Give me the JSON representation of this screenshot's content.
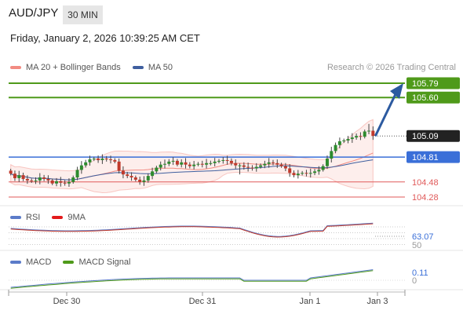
{
  "header": {
    "pair": "AUD/JPY",
    "timeframe": "30 MIN",
    "datetime": "Friday, January 2, 2026 10:39:25 AM CET",
    "credit": "Research © 2026 Trading Central"
  },
  "legend": {
    "main": [
      {
        "label": "MA 20 + Bollinger Bands",
        "color": "#f28b82"
      },
      {
        "label": "MA 50",
        "color": "#3f5f9f"
      }
    ],
    "rsi": [
      {
        "label": "RSI",
        "color": "#5b7bc9"
      },
      {
        "label": "9MA",
        "color": "#e31a1c"
      }
    ],
    "macd": [
      {
        "label": "MACD",
        "color": "#5b7bc9"
      },
      {
        "label": "MACD Signal",
        "color": "#4f9a1a"
      }
    ]
  },
  "colors": {
    "resistance": "#4f9a1a",
    "pivot": "#3a6fd8",
    "support": "#e05a5a",
    "current": "#222222",
    "arrow": "#2c5aa0",
    "bull": "#2e8b2e",
    "bear": "#c0392b"
  },
  "chart_data": [
    {
      "type": "candlestick",
      "title": "AUD/JPY",
      "ylim": [
        104.2,
        105.84
      ],
      "x_ticks": [
        "Dec 30",
        "Dec 31",
        "Jan 1",
        "Jan 3"
      ],
      "levels": [
        {
          "value": 105.79,
          "label": "105.79",
          "kind": "resistance"
        },
        {
          "value": 105.6,
          "label": "105.60",
          "kind": "resistance"
        },
        {
          "value": 105.09,
          "label": "105.09",
          "kind": "current"
        },
        {
          "value": 104.81,
          "label": "104.81",
          "kind": "pivot"
        },
        {
          "value": 104.48,
          "label": "104.48",
          "kind": "support"
        },
        {
          "value": 104.28,
          "label": "104.28",
          "kind": "support"
        }
      ],
      "closes": [
        104.59,
        104.53,
        104.57,
        104.52,
        104.5,
        104.49,
        104.5,
        104.54,
        104.52,
        104.5,
        104.46,
        104.49,
        104.47,
        104.46,
        104.48,
        104.54,
        104.64,
        104.7,
        104.74,
        104.78,
        104.79,
        104.77,
        104.79,
        104.78,
        104.77,
        104.75,
        104.63,
        104.58,
        104.56,
        104.54,
        104.51,
        104.48,
        104.5,
        104.56,
        104.62,
        104.67,
        104.71,
        104.72,
        104.75,
        104.76,
        104.71,
        104.74,
        104.71,
        104.69,
        104.71,
        104.72,
        104.71,
        104.73,
        104.73,
        104.75,
        104.76,
        104.77,
        104.76,
        104.73,
        104.7,
        104.7,
        104.68,
        104.67,
        104.66,
        104.68,
        104.7,
        104.72,
        104.74,
        104.73,
        104.71,
        104.69,
        104.66,
        104.6,
        104.57,
        104.59,
        104.6,
        104.59,
        104.6,
        104.62,
        104.64,
        104.69,
        104.79,
        104.89,
        104.97,
        105.02,
        105.03,
        105.05,
        105.07,
        105.09,
        105.08,
        105.15,
        105.16,
        105.09
      ],
      "arrow_target": 105.79
    },
    {
      "type": "line",
      "title": "RSI",
      "series": [
        {
          "name": "RSI"
        },
        {
          "name": "9MA"
        }
      ],
      "value_label": "63.07",
      "hidden_label": "50"
    },
    {
      "type": "line",
      "title": "MACD",
      "series": [
        {
          "name": "MACD"
        },
        {
          "name": "MACD Signal"
        }
      ],
      "value_label": "0.11",
      "zero_label": "0"
    }
  ]
}
